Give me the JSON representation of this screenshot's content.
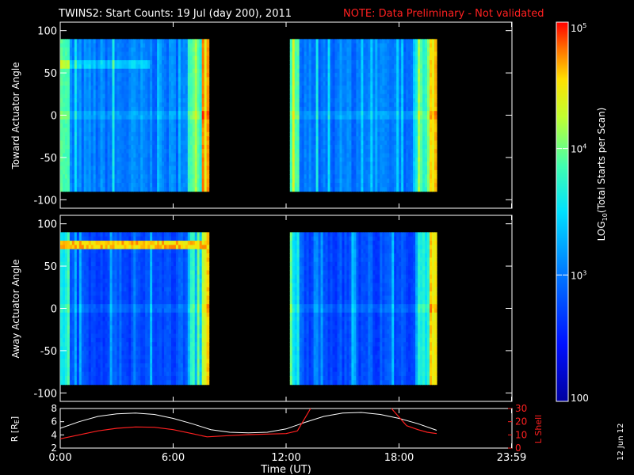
{
  "header": {
    "title": "TWINS2: Start Counts: 19 Jul (day 200), 2011",
    "note": "NOTE: Data Preliminary - Not validated",
    "note_color": "#ff2020"
  },
  "side_date": "12 Jun 12",
  "colorbar": {
    "label_prefix": "LOG",
    "label_sub": "10",
    "label_suffix": "(Total Starts per Scan)",
    "ticks": [
      {
        "value": 100,
        "base": "100",
        "exp": ""
      },
      {
        "value": 1000,
        "base": "10",
        "exp": "3"
      },
      {
        "value": 10000,
        "base": "10",
        "exp": "4"
      },
      {
        "value": 100000,
        "base": "10",
        "exp": "5"
      }
    ],
    "range": [
      100,
      100000
    ],
    "scale": "log"
  },
  "chart_data": [
    {
      "type": "heatmap",
      "ylabel": "Toward Actuator Angle",
      "ylim": [
        -110,
        110
      ],
      "yticks": [
        "100",
        "50",
        "0",
        "-50",
        "-100"
      ],
      "ytick_values": [
        100,
        50,
        0,
        -50,
        -100
      ],
      "x_range_hours": [
        0,
        24
      ],
      "angle_range": [
        -90,
        90
      ],
      "data_intervals_hours": [
        [
          0,
          7.9
        ],
        [
          12.2,
          20.0
        ]
      ],
      "feature": "bright band near +60 deg in first half of morning interval"
    },
    {
      "type": "heatmap",
      "ylabel": "Away Actuator Angle",
      "ylim": [
        -110,
        110
      ],
      "yticks": [
        "100",
        "50",
        "0",
        "-50",
        "-100"
      ],
      "ytick_values": [
        100,
        50,
        0,
        -50,
        -100
      ],
      "x_range_hours": [
        0,
        24
      ],
      "angle_range": [
        -90,
        90
      ],
      "data_intervals_hours": [
        [
          0,
          7.9
        ],
        [
          12.2,
          20.0
        ]
      ],
      "feature": "high-count band near +70 to +80 deg during morning interval"
    },
    {
      "type": "line",
      "ylabel_left": "R [R",
      "ylabel_left_sub": "E",
      "ylabel_left_end": "]",
      "ylabel_right": "L Shell",
      "ylim_left": [
        2,
        8
      ],
      "yticks_left": [
        "8",
        "6",
        "4",
        "2"
      ],
      "ylim_right": [
        0,
        30
      ],
      "yticks_right": [
        "30",
        "20",
        "10",
        "0"
      ],
      "xlabel": "Time (UT)",
      "xticks": [
        "0:00",
        "6:00",
        "12:00",
        "18:00",
        "23:59"
      ],
      "xtick_hours": [
        0,
        6,
        12,
        18,
        23.98
      ],
      "series": [
        {
          "name": "R",
          "color": "#ffffff",
          "x": [
            0,
            1,
            2,
            3,
            4,
            5,
            6,
            7,
            8,
            9,
            10,
            11,
            12,
            13,
            14,
            15,
            16,
            17,
            18,
            19,
            20
          ],
          "y": [
            5.0,
            6.0,
            6.8,
            7.2,
            7.3,
            7.1,
            6.5,
            5.7,
            4.8,
            4.4,
            4.3,
            4.4,
            4.9,
            5.9,
            6.8,
            7.3,
            7.4,
            7.1,
            6.5,
            5.7,
            4.7
          ]
        },
        {
          "name": "L Shell",
          "color": "#ff2020",
          "x": [
            0,
            1,
            2,
            3,
            4,
            5,
            6,
            7,
            7.8,
            9,
            10,
            11,
            12,
            12.6,
            13.3,
            17.6,
            18.4,
            19.0,
            19.5,
            20.0
          ],
          "y": [
            7,
            10,
            13,
            15,
            16,
            15.8,
            14,
            11,
            8.5,
            9.5,
            10.2,
            10.6,
            11,
            13,
            19,
            19,
            17,
            14,
            12,
            11
          ]
        }
      ],
      "series_offscale": [
        {
          "name": "L Shell",
          "x_from": 12.6,
          "x_to": 13.3,
          "note": "rises above 30"
        },
        {
          "name": "L Shell",
          "x_from": 17.6,
          "x_to": 18.4,
          "note": "comes down from above 30"
        }
      ]
    }
  ]
}
